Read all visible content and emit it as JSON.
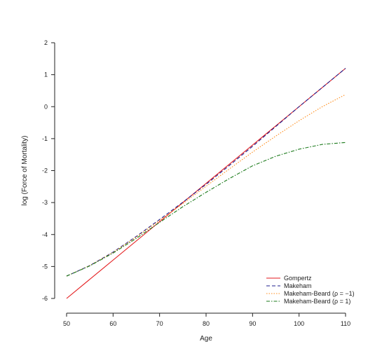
{
  "chart_data": {
    "type": "line",
    "title": "",
    "xlabel": "Age",
    "ylabel": "log (Force of Mortality)",
    "xlim": [
      50,
      110
    ],
    "ylim": [
      -6,
      2
    ],
    "xticks": [
      50,
      60,
      70,
      80,
      90,
      100,
      110
    ],
    "yticks": [
      -6,
      -5,
      -4,
      -3,
      -2,
      -1,
      0,
      1,
      2
    ],
    "grid": false,
    "legend_position": "bottom-right",
    "series": [
      {
        "name": "Gompertz",
        "color": "#e41a1c",
        "style": "solid",
        "x": [
          50,
          60,
          70,
          80,
          90,
          100,
          110
        ],
        "y": [
          -6.0,
          -4.8,
          -3.6,
          -2.4,
          -1.2,
          0.0,
          1.2
        ]
      },
      {
        "name": "Makeham",
        "color": "#1f1f8f",
        "style": "dashed",
        "x": [
          50,
          55,
          60,
          65,
          70,
          75,
          80,
          85,
          90,
          95,
          100,
          105,
          110
        ],
        "y": [
          -5.3,
          -4.97,
          -4.55,
          -4.06,
          -3.53,
          -2.99,
          -2.43,
          -1.84,
          -1.24,
          -0.62,
          0.0,
          0.6,
          1.2
        ]
      },
      {
        "name": "Makeham-Beard (ρ = −1)",
        "color": "#ff8c1a",
        "style": "dotted",
        "x": [
          50,
          55,
          60,
          65,
          70,
          75,
          80,
          85,
          90,
          95,
          100,
          105,
          110
        ],
        "y": [
          -5.3,
          -4.97,
          -4.56,
          -4.08,
          -3.56,
          -3.03,
          -2.49,
          -1.95,
          -1.42,
          -0.92,
          -0.44,
          0.0,
          0.38
        ]
      },
      {
        "name": "Makeham-Beard (ρ = 1)",
        "color": "#1b7a1b",
        "style": "dashdot",
        "x": [
          50,
          55,
          60,
          65,
          70,
          75,
          80,
          85,
          90,
          95,
          100,
          105,
          110
        ],
        "y": [
          -5.3,
          -4.98,
          -4.58,
          -4.12,
          -3.62,
          -3.13,
          -2.68,
          -2.25,
          -1.85,
          -1.55,
          -1.33,
          -1.18,
          -1.12
        ]
      }
    ]
  }
}
